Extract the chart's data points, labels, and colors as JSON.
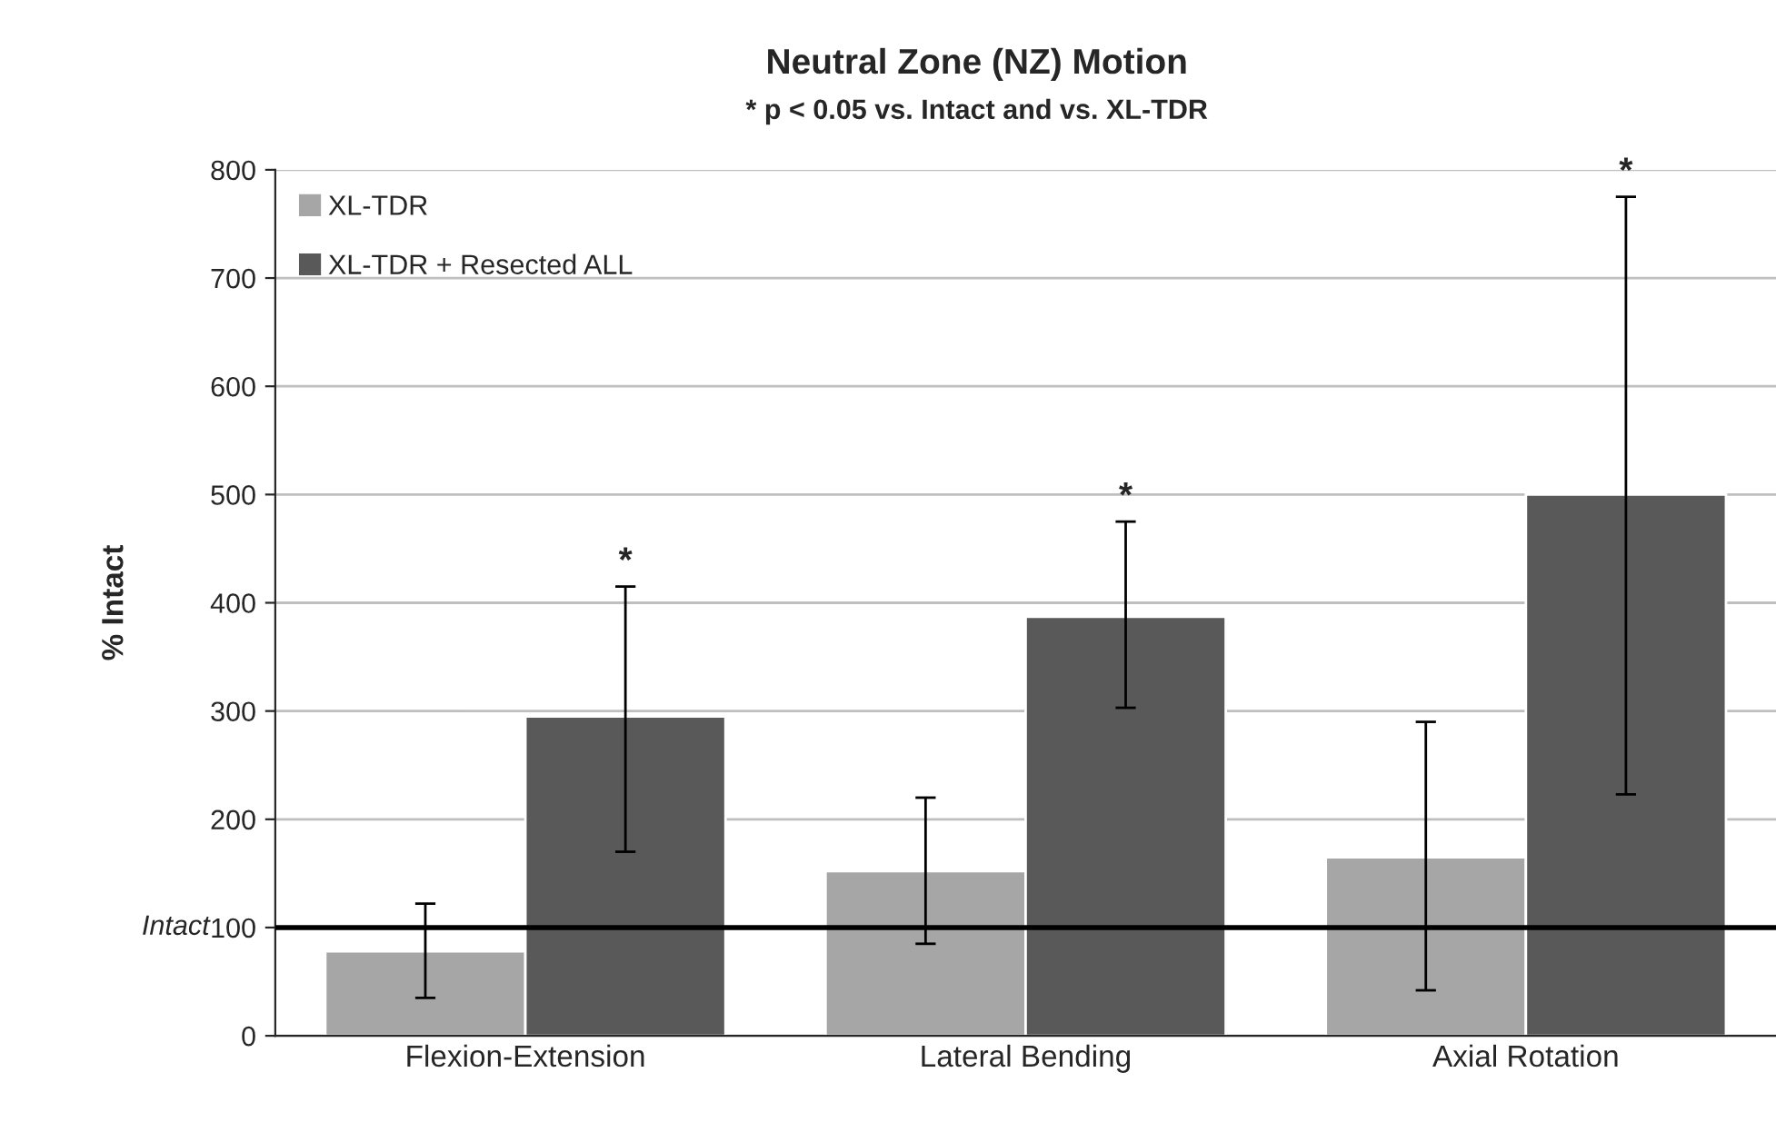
{
  "chart_data": {
    "type": "bar",
    "title": "Neutral Zone (NZ) Motion",
    "subtitle": "* p < 0.05 vs. Intact and vs. XL-TDR",
    "ylabel": "% Intact",
    "categories": [
      "Flexion-Extension",
      "Lateral Bending",
      "Axial Rotation"
    ],
    "series": [
      {
        "name": "XL-TDR",
        "color": "#a6a6a6",
        "values": [
          78,
          152,
          165
        ],
        "errors": [
          [
            35,
            122
          ],
          [
            85,
            220
          ],
          [
            42,
            290
          ]
        ]
      },
      {
        "name": "XL-TDR + Resected ALL",
        "color": "#595959",
        "values": [
          295,
          387,
          500
        ],
        "errors": [
          [
            170,
            415
          ],
          [
            303,
            475
          ],
          [
            223,
            775
          ]
        ]
      }
    ],
    "ylim": [
      0,
      800
    ],
    "yticks": [
      0,
      100,
      200,
      300,
      400,
      500,
      600,
      700,
      800
    ],
    "grid": "y",
    "legend": "top left",
    "ref_lines": [
      {
        "axis": "y",
        "value": 100,
        "label": "Intact",
        "color": "#000000"
      }
    ],
    "annotations": [
      "*",
      "*",
      "*"
    ]
  }
}
